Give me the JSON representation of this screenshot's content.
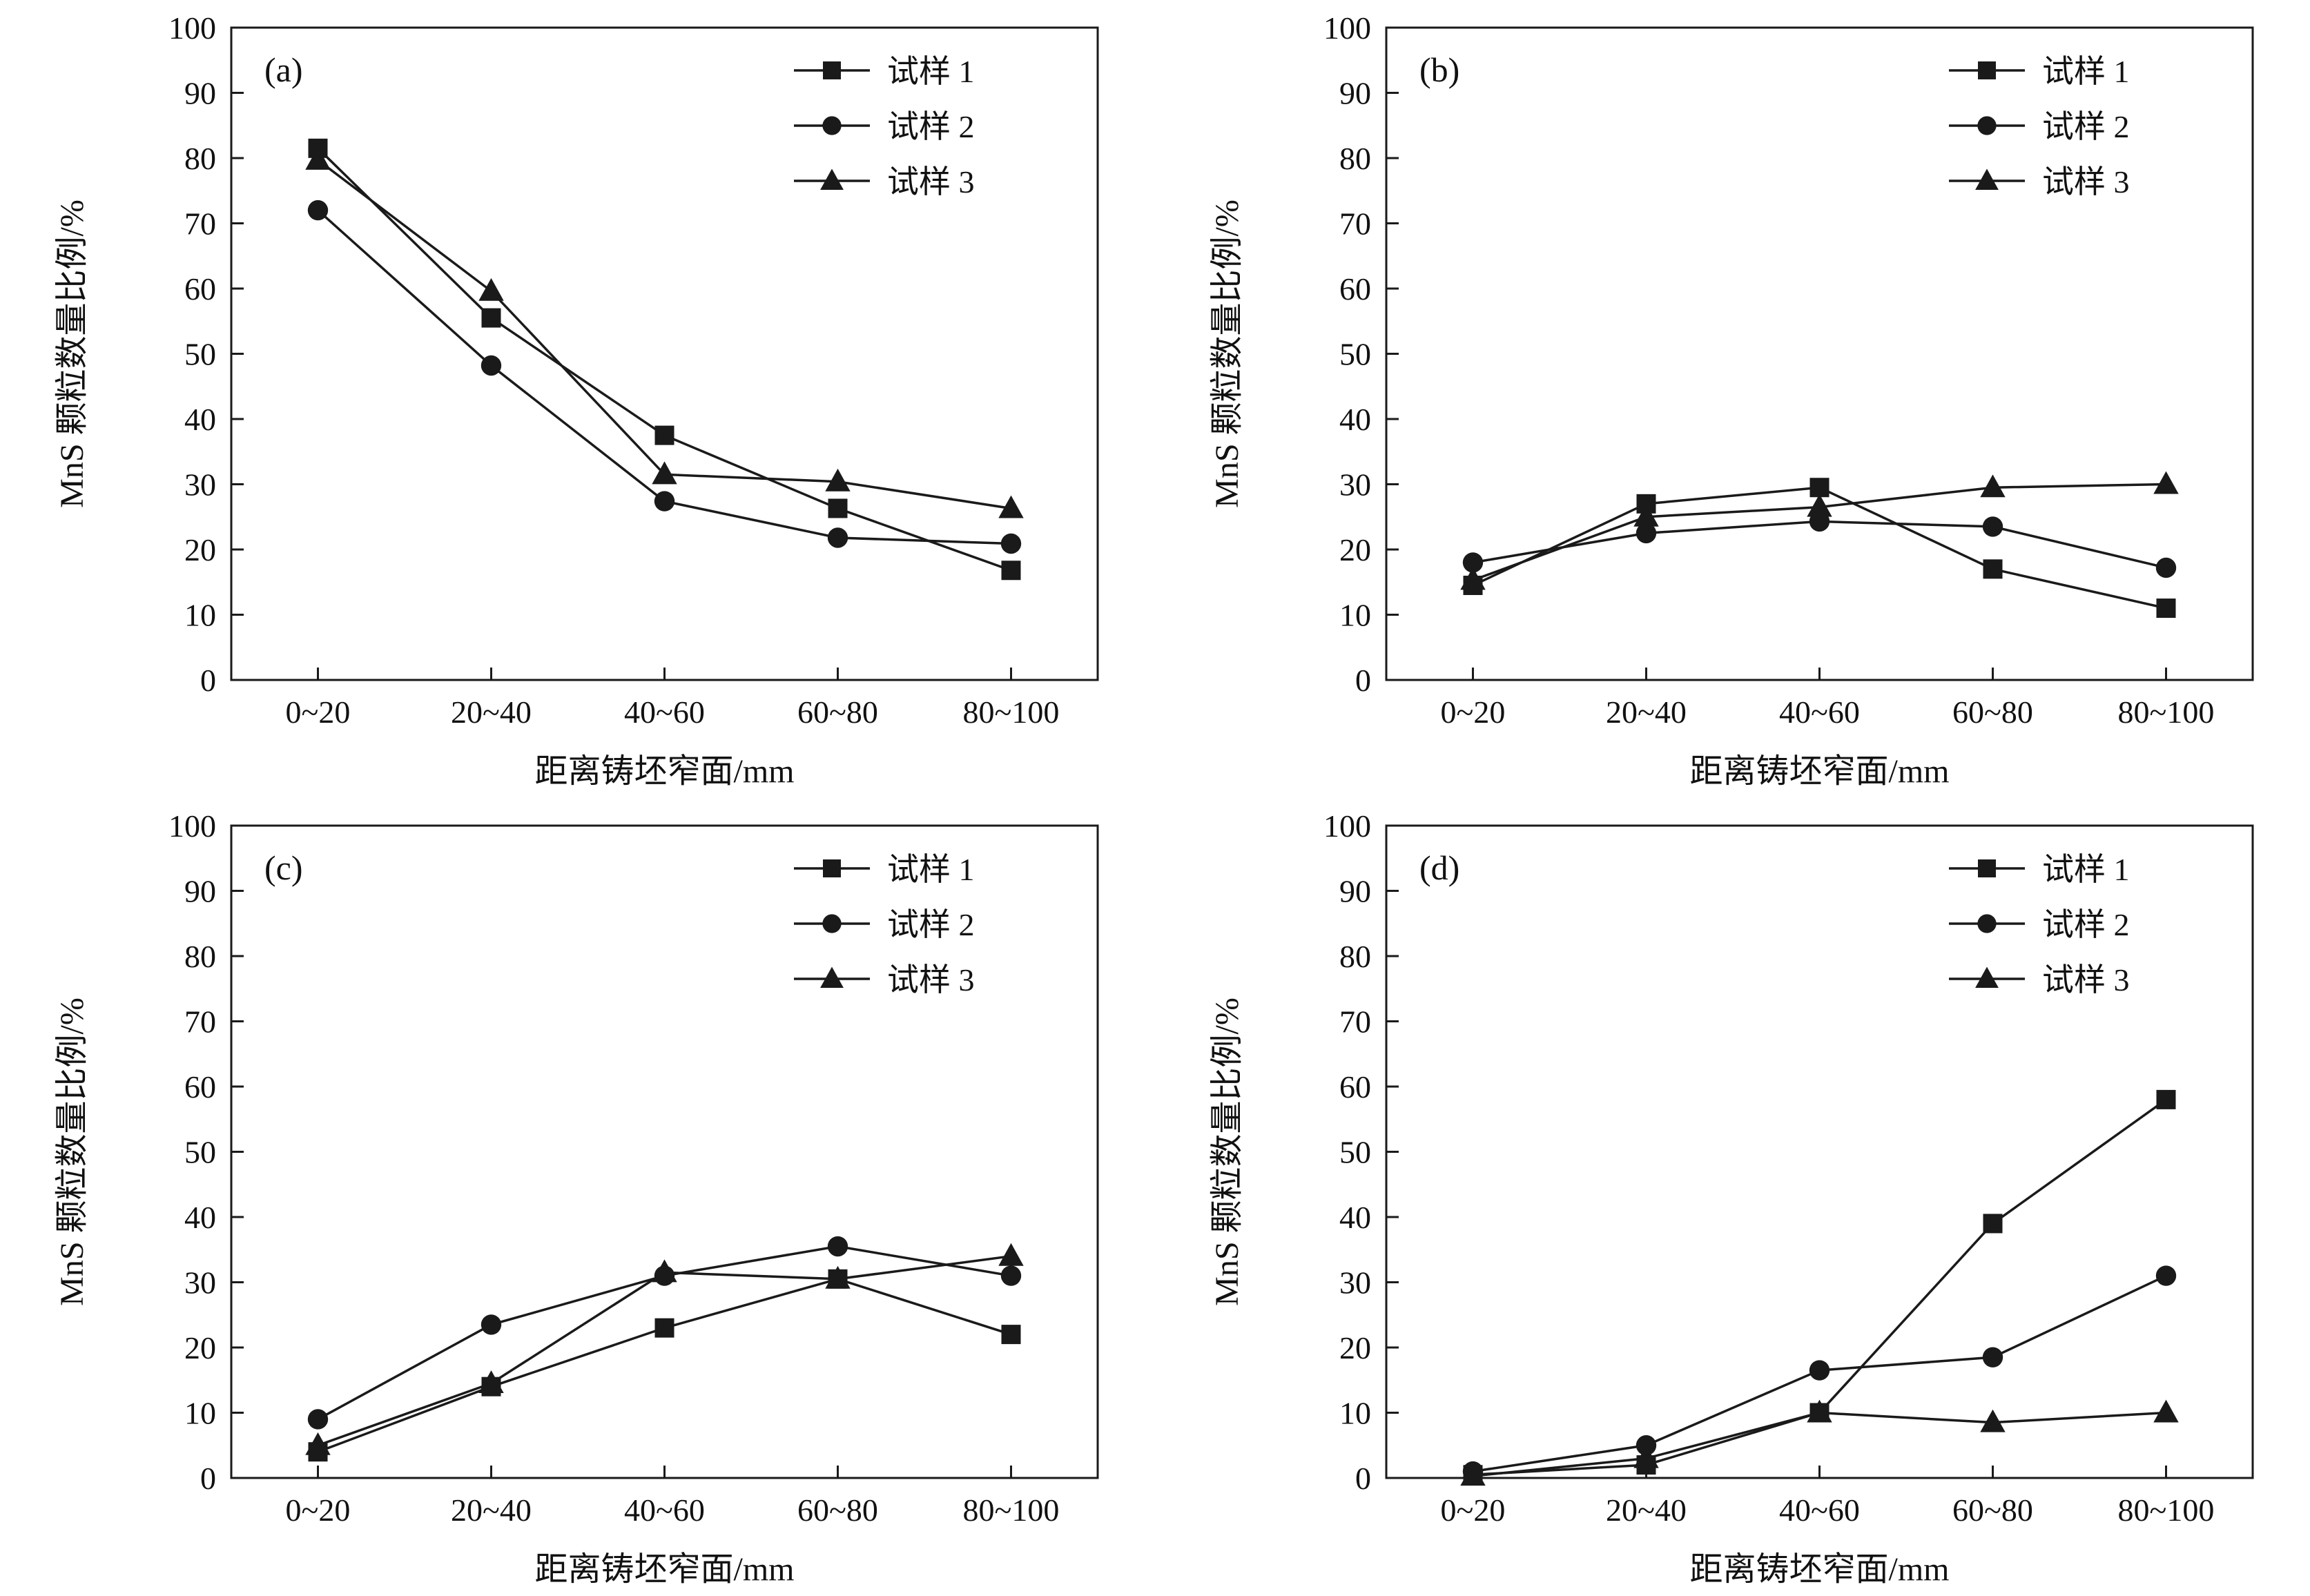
{
  "figure": {
    "ylabel": "MnS 颗粒数量比例/%",
    "xlabel": "距离铸坯窄面/mm",
    "categories": [
      "0~20",
      "20~40",
      "40~60",
      "60~80",
      "80~100"
    ],
    "ylim": [
      0,
      100
    ],
    "ytick_step": 10,
    "ytick_labels": [
      "0",
      "10",
      "20",
      "30",
      "40",
      "50",
      "60",
      "70",
      "80",
      "90",
      "100"
    ],
    "line_color": "#1a1a1a",
    "background_color": "#ffffff",
    "legend_position": "top-right-inside",
    "grid": "off"
  },
  "chart_data": [
    {
      "type": "line",
      "panel": "(a)",
      "xlabel": "距离铸坯窄面/mm",
      "ylabel": "MnS 颗粒数量比例/%",
      "ylim": [
        0,
        100
      ],
      "categories": [
        "0~20",
        "20~40",
        "40~60",
        "60~80",
        "80~100"
      ],
      "series": [
        {
          "name": "试样 1",
          "marker": "square",
          "values": [
            81.5,
            55.5,
            37.5,
            26.3,
            16.8
          ]
        },
        {
          "name": "试样 2",
          "marker": "circle",
          "values": [
            72.0,
            48.2,
            27.4,
            21.8,
            20.9
          ]
        },
        {
          "name": "试样 3",
          "marker": "triangle",
          "values": [
            79.7,
            59.6,
            31.5,
            30.4,
            26.3
          ]
        }
      ]
    },
    {
      "type": "line",
      "panel": "(b)",
      "xlabel": "距离铸坯窄面/mm",
      "ylabel": "MnS 颗粒数量比例/%",
      "ylim": [
        0,
        100
      ],
      "categories": [
        "0~20",
        "20~40",
        "40~60",
        "60~80",
        "80~100"
      ],
      "series": [
        {
          "name": "试样 1",
          "marker": "square",
          "values": [
            14.5,
            27.0,
            29.5,
            17.0,
            11.0
          ]
        },
        {
          "name": "试样 2",
          "marker": "circle",
          "values": [
            18.0,
            22.5,
            24.3,
            23.5,
            17.2
          ]
        },
        {
          "name": "试样 3",
          "marker": "triangle",
          "values": [
            15.3,
            25.0,
            26.5,
            29.5,
            30.0
          ]
        }
      ]
    },
    {
      "type": "line",
      "panel": "(c)",
      "xlabel": "距离铸坯窄面/mm",
      "ylabel": "MnS 颗粒数量比例/%",
      "ylim": [
        0,
        100
      ],
      "categories": [
        "0~20",
        "20~40",
        "40~60",
        "60~80",
        "80~100"
      ],
      "series": [
        {
          "name": "试样 1",
          "marker": "square",
          "values": [
            4.0,
            14.0,
            23.0,
            30.5,
            22.0
          ]
        },
        {
          "name": "试样 2",
          "marker": "circle",
          "values": [
            9.0,
            23.5,
            31.0,
            35.5,
            31.0
          ]
        },
        {
          "name": "试样 3",
          "marker": "triangle",
          "values": [
            5.0,
            14.5,
            31.5,
            30.5,
            34.0
          ]
        }
      ]
    },
    {
      "type": "line",
      "panel": "(d)",
      "xlabel": "距离铸坯窄面/mm",
      "ylabel": "MnS 颗粒数量比例/%",
      "ylim": [
        0,
        100
      ],
      "categories": [
        "0~20",
        "20~40",
        "40~60",
        "60~80",
        "80~100"
      ],
      "series": [
        {
          "name": "试样 1",
          "marker": "square",
          "values": [
            0.5,
            2.0,
            10.0,
            39.0,
            58.0
          ]
        },
        {
          "name": "试样 2",
          "marker": "circle",
          "values": [
            1.0,
            5.0,
            16.5,
            18.5,
            31.0
          ]
        },
        {
          "name": "试样 3",
          "marker": "triangle",
          "values": [
            0.3,
            3.0,
            10.0,
            8.5,
            10.0
          ]
        }
      ]
    }
  ]
}
